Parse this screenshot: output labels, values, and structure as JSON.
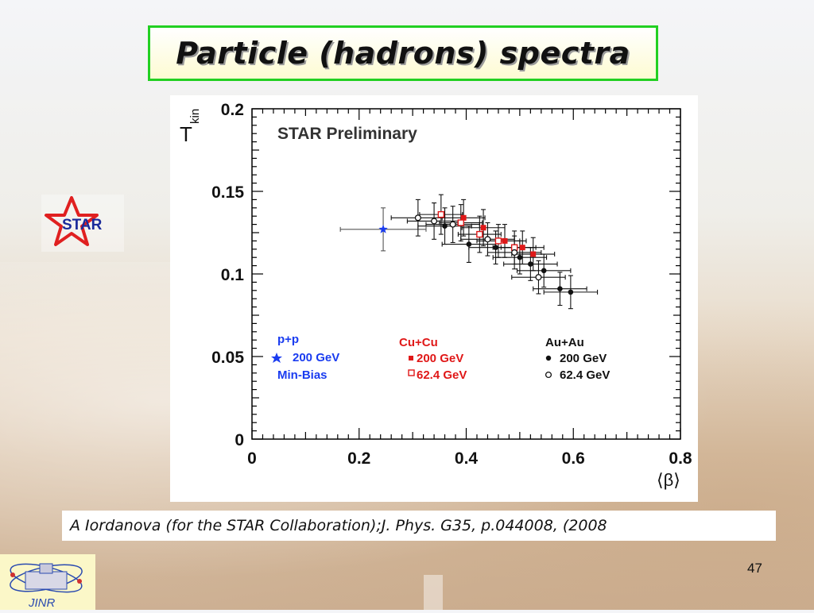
{
  "slide": {
    "title": "Particle (hadrons) spectra",
    "citation": "A Iordanova (for the STAR Collaboration);J. Phys.  G35, p.044008, (2008",
    "page_number": "47",
    "star_logo_text": "STAR",
    "jinr_logo_text": "JINR"
  },
  "chart_data": {
    "type": "scatter",
    "title": "STAR Preliminary",
    "xlabel": "⟨β⟩",
    "ylabel_main": "T",
    "ylabel_sub": "kin",
    "xlim": [
      0,
      0.8
    ],
    "ylim": [
      0,
      0.2
    ],
    "x_ticks": [
      0,
      0.2,
      0.4,
      0.6,
      0.8
    ],
    "x_tick_labels": [
      "0",
      "0.2",
      "0.4",
      "0.6",
      "0.8"
    ],
    "y_ticks": [
      0,
      0.05,
      0.1,
      0.15,
      0.2
    ],
    "y_tick_labels": [
      "0",
      "0.05",
      "0.1",
      "0.15",
      "0.2"
    ],
    "grid": false,
    "legend": {
      "groups": [
        {
          "heading": "p+p",
          "entries": [
            "200 GeV",
            "Min-Bias"
          ],
          "color": "#1a3cf0"
        },
        {
          "heading": "Cu+Cu",
          "entries": [
            "200 GeV",
            "62.4 GeV"
          ],
          "color": "#e01818"
        },
        {
          "heading": "Au+Au",
          "entries": [
            "200 GeV",
            "62.4 GeV"
          ],
          "color": "#111111"
        }
      ]
    },
    "series": [
      {
        "name": "p+p 200 GeV Min-Bias",
        "marker": "star",
        "color": "#1a3cf0",
        "points": [
          {
            "x": 0.245,
            "y": 0.127,
            "xerr": 0.08,
            "yerr": 0.013
          }
        ]
      },
      {
        "name": "Cu+Cu 200 GeV",
        "marker": "filled-square",
        "color": "#e01818",
        "points": [
          {
            "x": 0.395,
            "y": 0.134,
            "xerr": 0.04,
            "yerr": 0.011
          },
          {
            "x": 0.432,
            "y": 0.128,
            "xerr": 0.04,
            "yerr": 0.011
          },
          {
            "x": 0.472,
            "y": 0.12,
            "xerr": 0.04,
            "yerr": 0.01
          },
          {
            "x": 0.505,
            "y": 0.116,
            "xerr": 0.04,
            "yerr": 0.01
          },
          {
            "x": 0.525,
            "y": 0.112,
            "xerr": 0.04,
            "yerr": 0.01
          }
        ]
      },
      {
        "name": "Cu+Cu 62.4 GeV",
        "marker": "open-square",
        "color": "#e01818",
        "points": [
          {
            "x": 0.353,
            "y": 0.136,
            "xerr": 0.04,
            "yerr": 0.012
          },
          {
            "x": 0.39,
            "y": 0.131,
            "xerr": 0.04,
            "yerr": 0.011
          },
          {
            "x": 0.425,
            "y": 0.124,
            "xerr": 0.04,
            "yerr": 0.011
          },
          {
            "x": 0.46,
            "y": 0.12,
            "xerr": 0.04,
            "yerr": 0.01
          },
          {
            "x": 0.49,
            "y": 0.116,
            "xerr": 0.04,
            "yerr": 0.01
          }
        ]
      },
      {
        "name": "Au+Au 200 GeV",
        "marker": "filled-circle",
        "color": "#111111",
        "points": [
          {
            "x": 0.36,
            "y": 0.129,
            "xerr": 0.05,
            "yerr": 0.011
          },
          {
            "x": 0.405,
            "y": 0.118,
            "xerr": 0.05,
            "yerr": 0.011
          },
          {
            "x": 0.455,
            "y": 0.116,
            "xerr": 0.05,
            "yerr": 0.01
          },
          {
            "x": 0.5,
            "y": 0.11,
            "xerr": 0.05,
            "yerr": 0.01
          },
          {
            "x": 0.52,
            "y": 0.106,
            "xerr": 0.05,
            "yerr": 0.01
          },
          {
            "x": 0.545,
            "y": 0.102,
            "xerr": 0.05,
            "yerr": 0.01
          },
          {
            "x": 0.575,
            "y": 0.091,
            "xerr": 0.05,
            "yerr": 0.01
          },
          {
            "x": 0.595,
            "y": 0.089,
            "xerr": 0.05,
            "yerr": 0.01
          }
        ]
      },
      {
        "name": "Au+Au 62.4 GeV",
        "marker": "open-circle",
        "color": "#111111",
        "points": [
          {
            "x": 0.31,
            "y": 0.134,
            "xerr": 0.05,
            "yerr": 0.011
          },
          {
            "x": 0.34,
            "y": 0.132,
            "xerr": 0.05,
            "yerr": 0.011
          },
          {
            "x": 0.375,
            "y": 0.13,
            "xerr": 0.05,
            "yerr": 0.011
          },
          {
            "x": 0.44,
            "y": 0.121,
            "xerr": 0.05,
            "yerr": 0.01
          },
          {
            "x": 0.49,
            "y": 0.113,
            "xerr": 0.05,
            "yerr": 0.01
          },
          {
            "x": 0.535,
            "y": 0.098,
            "xerr": 0.05,
            "yerr": 0.01
          }
        ]
      }
    ]
  }
}
